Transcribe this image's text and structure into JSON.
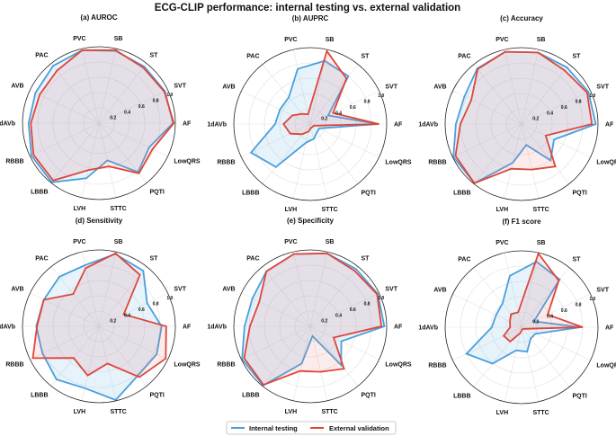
{
  "chart_data": {
    "title": "ECG-CLIP performance: internal testing vs. external validation",
    "type": "radar",
    "categories": [
      "SB",
      "ST",
      "SVT",
      "AF",
      "LowQRS",
      "PQTI",
      "STTC",
      "LVH",
      "LBBB",
      "RBBB",
      "1dAVb",
      "AVB",
      "PAC",
      "PVC"
    ],
    "rlim": [
      0,
      1.0
    ],
    "rticks": [
      "0.2",
      "0.4",
      "0.6",
      "0.8",
      "1.0"
    ],
    "grid": true,
    "legend_placement": "bottom-center",
    "series_colors": {
      "Internal testing": "#4a9fdc",
      "External validation": "#e0453a"
    },
    "legend": [
      "Internal testing",
      "External validation"
    ],
    "panels": [
      {
        "title": "(a) AUROC",
        "series": [
          {
            "name": "Internal testing",
            "values": [
              0.97,
              0.95,
              0.96,
              0.97,
              0.73,
              0.82,
              0.5,
              0.74,
              0.99,
              0.98,
              0.92,
              0.92,
              0.96,
              0.98
            ]
          },
          {
            "name": "External validation",
            "values": [
              0.98,
              0.93,
              0.95,
              0.98,
              0.78,
              0.84,
              0.58,
              0.63,
              0.96,
              0.95,
              0.89,
              0.86,
              0.88,
              0.98
            ]
          }
        ]
      },
      {
        "title": "(b) AUPRC",
        "series": [
          {
            "name": "Internal testing",
            "values": [
              0.85,
              0.8,
              0.26,
              0.89,
              0.13,
              0.14,
              0.2,
              0.25,
              0.72,
              0.86,
              0.46,
              0.44,
              0.45,
              0.74
            ]
          },
          {
            "name": "External validation",
            "values": [
              0.98,
              0.76,
              0.33,
              0.9,
              0.05,
              0.05,
              0.05,
              0.1,
              0.17,
              0.29,
              0.35,
              0.26,
              0.17,
              0.13
            ]
          }
        ]
      },
      {
        "title": "(c) Accuracy",
        "series": [
          {
            "name": "Internal testing",
            "values": [
              0.96,
              0.95,
              0.97,
              0.97,
              0.47,
              0.61,
              0.28,
              0.52,
              0.99,
              0.99,
              0.86,
              0.83,
              0.93,
              0.97
            ]
          },
          {
            "name": "External validation",
            "values": [
              0.96,
              0.9,
              0.95,
              0.92,
              0.35,
              0.71,
              0.61,
              0.6,
              0.99,
              0.96,
              0.8,
              0.73,
              0.92,
              0.97
            ]
          }
        ]
      },
      {
        "title": "(d) Sensitivity",
        "series": [
          {
            "name": "Internal testing",
            "values": [
              0.97,
              0.93,
              0.7,
              0.82,
              0.84,
              0.82,
              0.99,
              0.83,
              0.89,
              0.82,
              0.82,
              0.8,
              0.83,
              0.82
            ]
          },
          {
            "name": "External validation",
            "values": [
              0.98,
              0.86,
              0.36,
              0.88,
              0.97,
              0.85,
              0.5,
              0.66,
              0.53,
              0.96,
              0.81,
              0.8,
              0.54,
              0.78
            ]
          }
        ]
      },
      {
        "title": "(e) Specificity",
        "series": [
          {
            "name": "Internal testing",
            "values": [
              0.98,
              0.96,
              0.98,
              0.97,
              0.45,
              0.65,
              0.13,
              0.5,
              0.99,
              0.99,
              0.86,
              0.84,
              0.92,
              0.97
            ]
          },
          {
            "name": "External validation",
            "values": [
              0.98,
              0.93,
              0.97,
              0.93,
              0.34,
              0.71,
              0.61,
              0.6,
              0.98,
              0.96,
              0.79,
              0.74,
              0.92,
              0.97
            ]
          }
        ]
      },
      {
        "title": "(f) F1 score",
        "series": [
          {
            "name": "Internal testing",
            "values": [
              0.88,
              0.8,
              0.18,
              0.77,
              0.2,
              0.19,
              0.33,
              0.31,
              0.61,
              0.8,
              0.39,
              0.37,
              0.4,
              0.69
            ]
          },
          {
            "name": "External validation",
            "values": [
              0.99,
              0.78,
              0.38,
              0.8,
              0.05,
              0.03,
              0.03,
              0.08,
              0.24,
              0.26,
              0.15,
              0.17,
              0.22,
              0.2
            ]
          }
        ]
      }
    ]
  }
}
